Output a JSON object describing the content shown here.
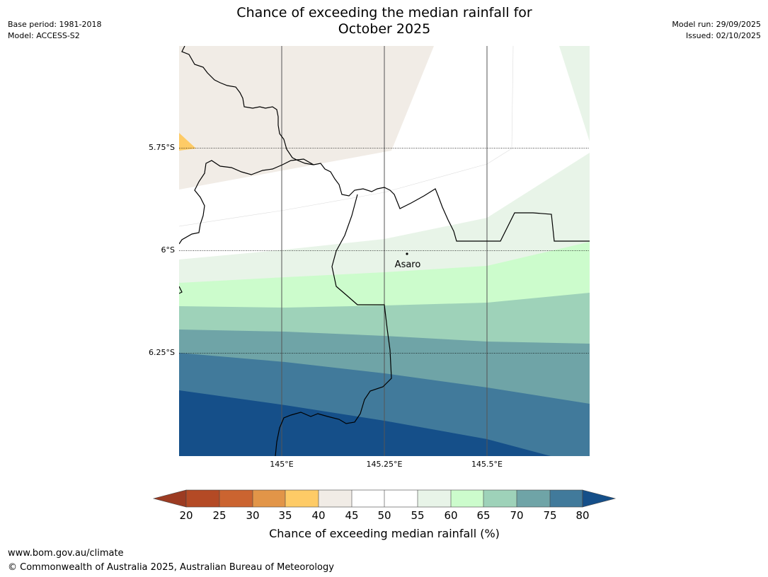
{
  "header": {
    "base_period": "Base period: 1981-2018",
    "model": "Model: ACCESS-S2",
    "model_run": "Model run: 29/09/2025",
    "issued": "Issued: 02/10/2025",
    "title_line1": "Chance of exceeding the median rainfall for",
    "title_line2": "October 2025"
  },
  "map": {
    "lat_labels": [
      "5.75°S",
      "6°S",
      "6.25°S"
    ],
    "lon_labels": [
      "145°E",
      "145.25°E",
      "145.5°E"
    ],
    "place": "Asaro"
  },
  "legend": {
    "ticks": [
      "20",
      "25",
      "30",
      "35",
      "40",
      "45",
      "50",
      "55",
      "60",
      "65",
      "70",
      "75",
      "80"
    ],
    "label": "Chance of exceeding median rainfall (%)",
    "colors": {
      "below20": "#9c3b22",
      "20-25": "#b44a25",
      "25-30": "#cb6430",
      "30-35": "#e29548",
      "35-40": "#fecb66",
      "40-45": "#f1ece6",
      "45-50": "#ffffff",
      "50-55": "#ffffff",
      "55-60": "#e8f4e8",
      "60-65": "#ccfccc",
      "65-70": "#9ed2b9",
      "70-75": "#6fa4a7",
      "75-80": "#417a9b",
      "above80": "#154f89"
    }
  },
  "footer": {
    "url": "www.bom.gov.au/climate",
    "copyright": "© Commonwealth of Australia 2025, Australian Bureau of Meteorology"
  }
}
